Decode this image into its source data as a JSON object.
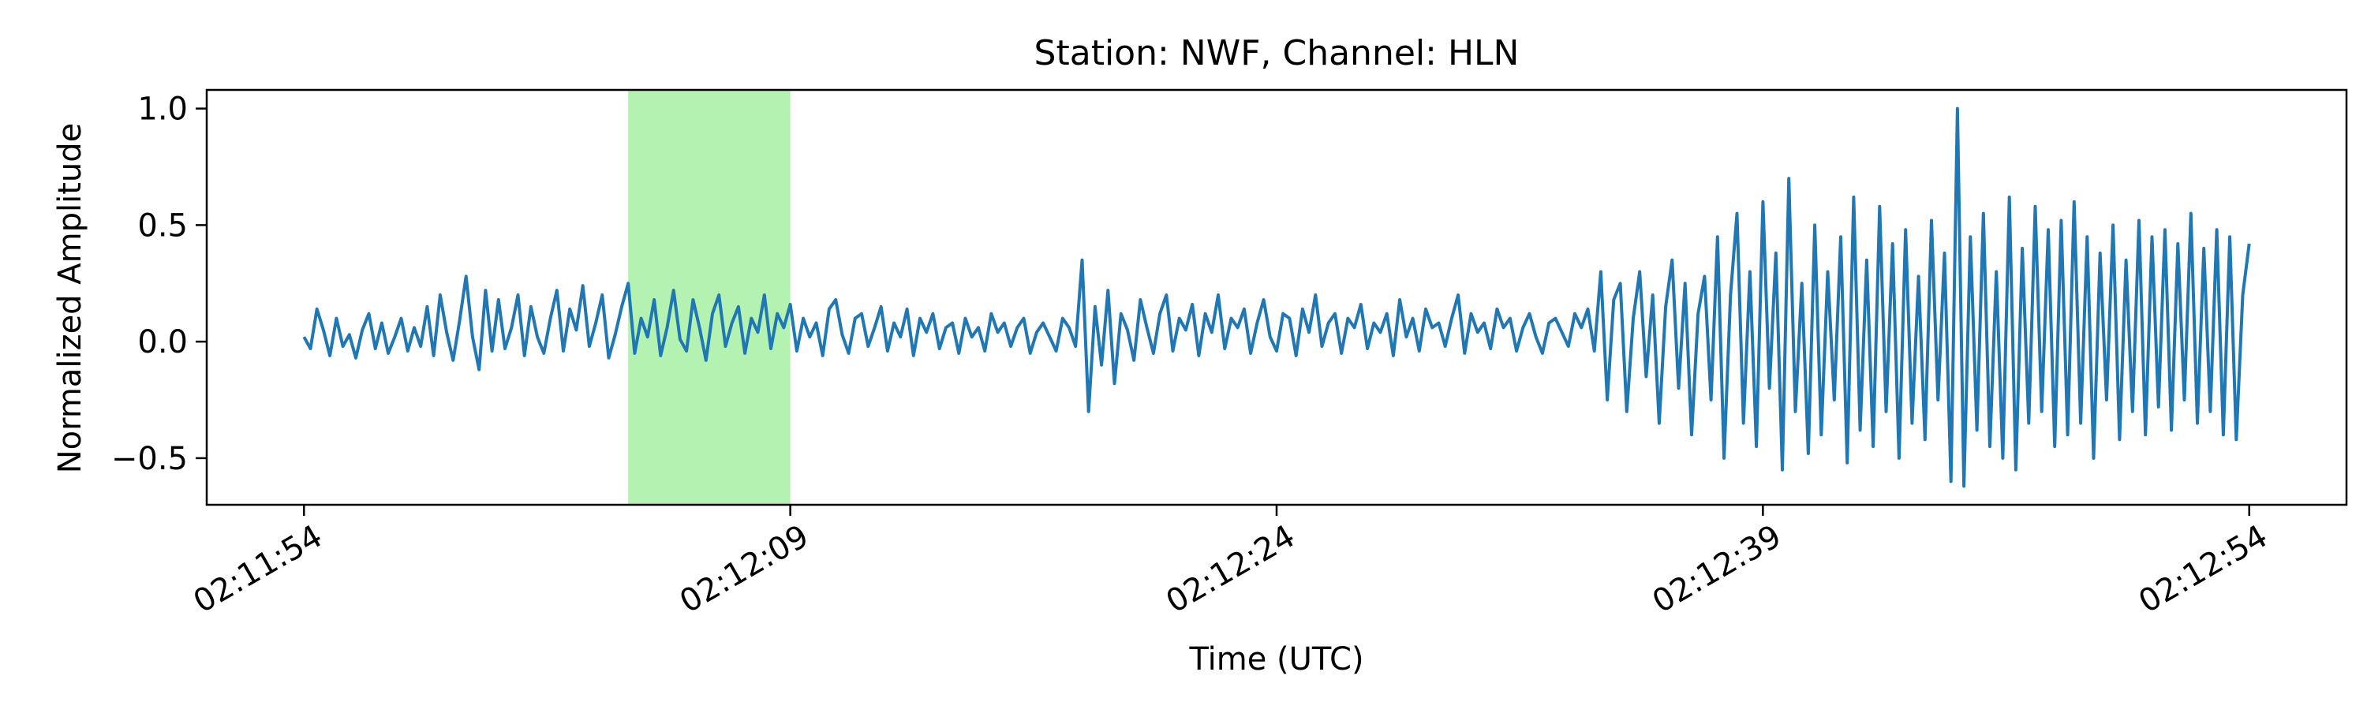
{
  "chart_data": {
    "type": "line",
    "title": "Station: NWF, Channel: HLN",
    "xlabel": "Time (UTC)",
    "ylabel": "Normalized Amplitude",
    "x_range_seconds": [
      -3,
      63
    ],
    "ylim": [
      -0.7,
      1.08
    ],
    "x_ticks": [
      {
        "t": 0,
        "label": "02:11:54"
      },
      {
        "t": 15,
        "label": "02:12:09"
      },
      {
        "t": 30,
        "label": "02:12:24"
      },
      {
        "t": 45,
        "label": "02:12:39"
      },
      {
        "t": 60,
        "label": "02:12:54"
      }
    ],
    "y_ticks": [
      {
        "v": -0.5,
        "label": "−0.5"
      },
      {
        "v": 0.0,
        "label": "0.0"
      },
      {
        "v": 0.5,
        "label": "0.5"
      },
      {
        "v": 1.0,
        "label": "1.0"
      }
    ],
    "highlight": {
      "start": 10,
      "end": 15,
      "color": "#b3f2b0"
    },
    "series": [
      {
        "color": "#1f77b4",
        "x_start": 0,
        "x_end": 60,
        "values": [
          0.02,
          -0.03,
          0.14,
          0.05,
          -0.06,
          0.1,
          -0.02,
          0.03,
          -0.07,
          0.05,
          0.12,
          -0.03,
          0.08,
          -0.05,
          0.02,
          0.1,
          -0.04,
          0.06,
          -0.02,
          0.15,
          -0.06,
          0.2,
          0.04,
          -0.08,
          0.09,
          0.28,
          0.02,
          -0.12,
          0.22,
          -0.04,
          0.18,
          -0.03,
          0.06,
          0.2,
          -0.06,
          0.15,
          0.02,
          -0.05,
          0.1,
          0.22,
          -0.04,
          0.14,
          0.05,
          0.24,
          -0.02,
          0.08,
          0.2,
          -0.07,
          0.03,
          0.15,
          0.25,
          -0.05,
          0.1,
          0.02,
          0.18,
          -0.06,
          0.06,
          0.22,
          0.01,
          -0.04,
          0.18,
          0.06,
          -0.08,
          0.12,
          0.2,
          -0.02,
          0.08,
          0.15,
          -0.05,
          0.1,
          0.04,
          0.2,
          -0.03,
          0.12,
          0.06,
          0.16,
          -0.04,
          0.1,
          0.02,
          0.08,
          -0.06,
          0.14,
          0.18,
          0.03,
          -0.05,
          0.1,
          0.12,
          -0.02,
          0.06,
          0.15,
          -0.04,
          0.08,
          0.02,
          0.14,
          -0.06,
          0.1,
          0.04,
          0.12,
          -0.03,
          0.06,
          0.08,
          -0.05,
          0.1,
          0.02,
          0.06,
          -0.04,
          0.12,
          0.04,
          0.08,
          -0.02,
          0.06,
          0.1,
          -0.05,
          0.04,
          0.08,
          0.02,
          -0.04,
          0.1,
          0.06,
          -0.02,
          0.35,
          -0.3,
          0.15,
          -0.1,
          0.22,
          -0.18,
          0.12,
          0.05,
          -0.08,
          0.18,
          0.06,
          -0.05,
          0.12,
          0.2,
          -0.04,
          0.1,
          0.05,
          0.16,
          -0.06,
          0.12,
          0.04,
          0.2,
          -0.03,
          0.1,
          0.06,
          0.14,
          -0.05,
          0.08,
          0.18,
          0.02,
          -0.04,
          0.12,
          0.1,
          -0.06,
          0.14,
          0.04,
          0.2,
          -0.02,
          0.08,
          0.12,
          -0.05,
          0.1,
          0.06,
          0.16,
          -0.03,
          0.08,
          0.04,
          0.12,
          -0.06,
          0.18,
          0.02,
          0.1,
          -0.04,
          0.14,
          0.06,
          0.08,
          -0.02,
          0.1,
          0.2,
          -0.05,
          0.12,
          0.04,
          0.08,
          -0.03,
          0.14,
          0.06,
          0.1,
          -0.04,
          0.06,
          0.12,
          0.02,
          -0.05,
          0.08,
          0.1,
          0.04,
          -0.02,
          0.12,
          0.06,
          0.14,
          -0.04,
          0.3,
          -0.25,
          0.18,
          0.25,
          -0.3,
          0.1,
          0.3,
          -0.15,
          0.2,
          -0.35,
          0.15,
          0.35,
          -0.2,
          0.25,
          -0.4,
          0.12,
          0.28,
          -0.25,
          0.45,
          -0.5,
          0.2,
          0.55,
          -0.35,
          0.3,
          -0.45,
          0.6,
          -0.2,
          0.38,
          -0.55,
          0.7,
          -0.3,
          0.25,
          -0.48,
          0.5,
          -0.4,
          0.3,
          -0.25,
          0.45,
          -0.52,
          0.62,
          -0.38,
          0.35,
          -0.45,
          0.58,
          -0.3,
          0.42,
          -0.5,
          0.48,
          -0.35,
          0.28,
          -0.42,
          0.52,
          -0.25,
          0.38,
          -0.6,
          1.0,
          -0.62,
          0.45,
          -0.38,
          0.55,
          -0.45,
          0.3,
          -0.5,
          0.62,
          -0.55,
          0.4,
          -0.35,
          0.58,
          -0.3,
          0.48,
          -0.45,
          0.52,
          -0.4,
          0.6,
          -0.35,
          0.45,
          -0.5,
          0.38,
          -0.25,
          0.5,
          -0.42,
          0.35,
          -0.3,
          0.52,
          -0.4,
          0.45,
          -0.28,
          0.48,
          -0.38,
          0.42,
          -0.25,
          0.55,
          -0.35,
          0.4,
          -0.3,
          0.48,
          -0.4,
          0.45,
          -0.42,
          0.2,
          0.42
        ]
      }
    ]
  }
}
